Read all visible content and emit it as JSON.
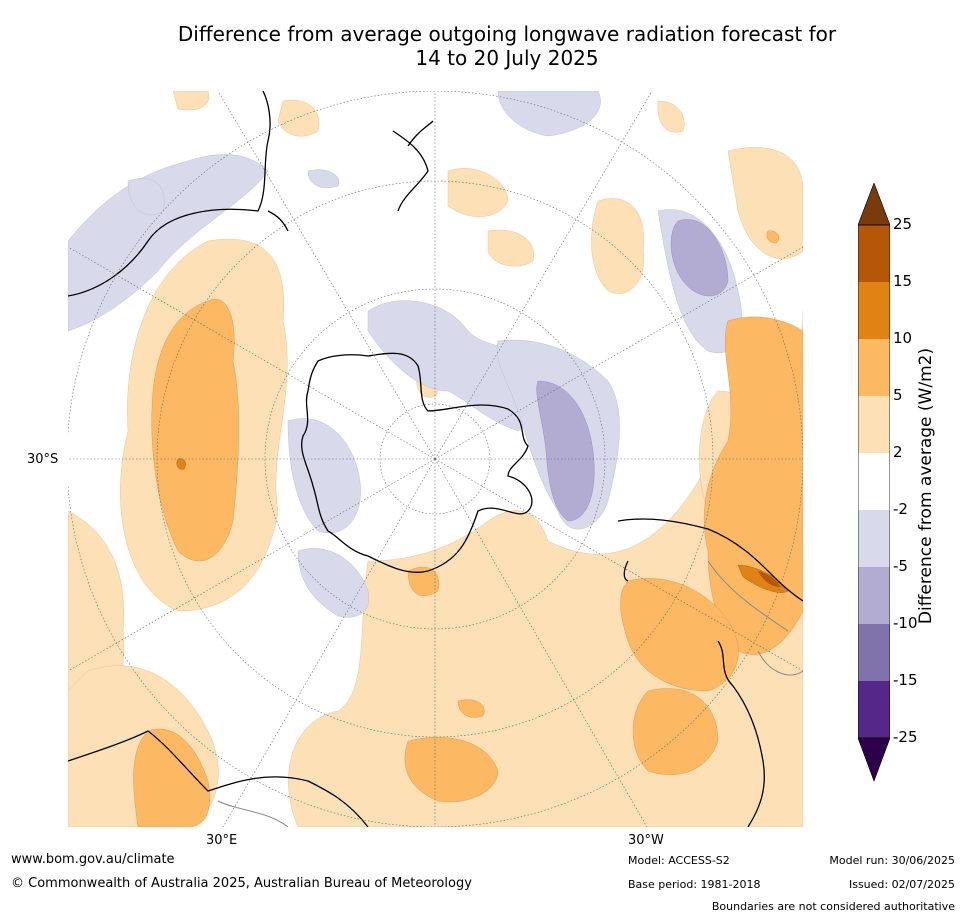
{
  "title_line1": "Difference from average outgoing longwave radiation forecast for",
  "title_line2": "14 to 20 July 2025",
  "map_labels": {
    "lat_30s": "30°S",
    "lon_30e": "30°E",
    "lon_30w": "30°W"
  },
  "colorbar": {
    "label": "Difference from average (W/m2)",
    "ticks": [
      "25",
      "15",
      "10",
      "5",
      "2",
      "-2",
      "-5",
      "-10",
      "-15",
      "-25"
    ],
    "colors": {
      "gt25": "#7a3b0c",
      "15_25": "#b55609",
      "10_15": "#e08214",
      "5_10": "#fdb863",
      "2_5": "#fee0b6",
      "n2_2": "#ffffff",
      "n5_n2": "#d8daeb",
      "n10_n5": "#b2abd2",
      "n15_n10": "#8073ac",
      "n25_n15": "#542788",
      "lt_n25": "#2d004b"
    }
  },
  "footer": {
    "website": "www.bom.gov.au/climate",
    "copyright": "© Commonwealth of Australia 2025, Australian Bureau of Meteorology",
    "model": "Model: ACCESS-S2",
    "base_period": "Base period: 1981-2018",
    "model_run": "Model run: 30/06/2025",
    "issued": "Issued: 02/07/2025",
    "disclaimer": "Boundaries are not considered authoritative"
  }
}
